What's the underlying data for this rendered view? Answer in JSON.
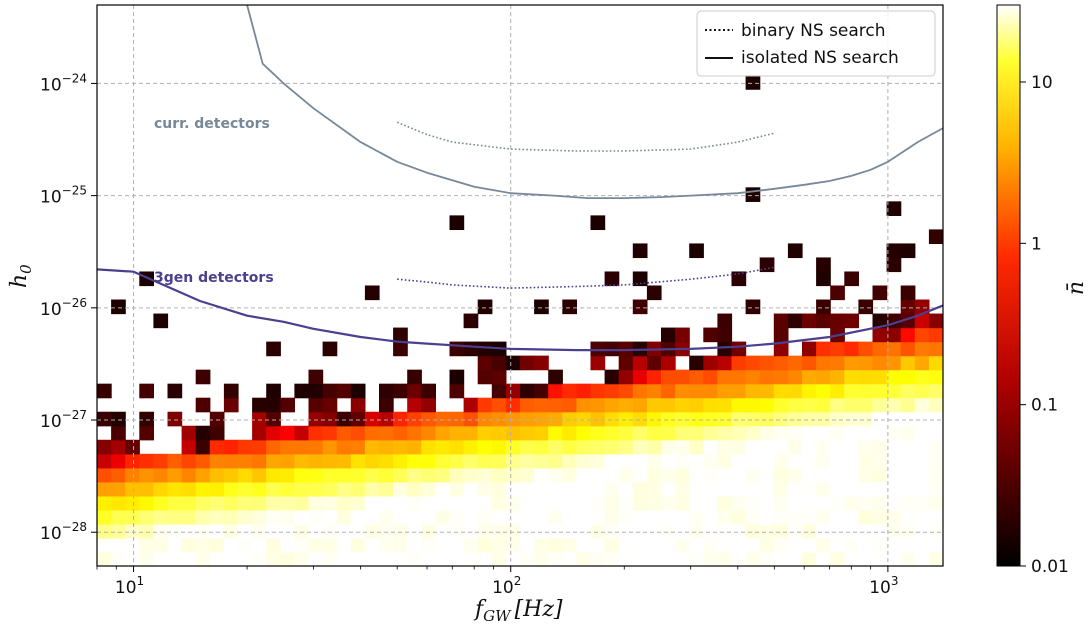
{
  "chart_data": {
    "type": "heatmap",
    "title": "",
    "xlabel_main": "f",
    "xlabel_sub": "GW",
    "xlabel_unit": "[Hz]",
    "ylabel_main": "h",
    "ylabel_sub": "0",
    "colorbar_label": "n̄",
    "x_scale": "log",
    "y_scale": "log",
    "xlim": [
      8,
      1400
    ],
    "ylim": [
      5e-29,
      5e-24
    ],
    "grid": true,
    "x_ticks": [
      {
        "value": 10,
        "base": "10",
        "exp": "1"
      },
      {
        "value": 100,
        "base": "10",
        "exp": "2"
      },
      {
        "value": 1000,
        "base": "10",
        "exp": "3"
      }
    ],
    "y_ticks": [
      {
        "value": 1e-24,
        "base": "10",
        "exp": "−24"
      },
      {
        "value": 1e-25,
        "base": "10",
        "exp": "−25"
      },
      {
        "value": 1e-26,
        "base": "10",
        "exp": "−26"
      },
      {
        "value": 1e-27,
        "base": "10",
        "exp": "−27"
      },
      {
        "value": 1e-28,
        "base": "10",
        "exp": "−28"
      }
    ],
    "colorbar": {
      "scale": "log",
      "range": [
        0.01,
        30
      ],
      "ticks": [
        {
          "value": 10,
          "label": "10"
        },
        {
          "value": 1,
          "label": "1"
        },
        {
          "value": 0.1,
          "label": "0.1"
        },
        {
          "value": 0.01,
          "label": "0.01"
        }
      ]
    },
    "legend": {
      "position": "top-right",
      "entries": [
        {
          "label": "binary NS search",
          "style": "dotted"
        },
        {
          "label": "isolated NS search",
          "style": "solid"
        }
      ]
    },
    "annotations": [
      {
        "text": "curr. detectors",
        "color": "#778899"
      },
      {
        "text": "3gen detectors",
        "color": "#4b3f8f"
      }
    ],
    "series": [
      {
        "group": "curr. detectors",
        "style": "solid",
        "color": "#778899",
        "x": [
          20,
          22,
          25,
          30,
          40,
          50,
          60,
          80,
          100,
          130,
          160,
          200,
          250,
          300,
          400,
          500,
          600,
          700,
          800,
          900,
          1000,
          1200,
          1400
        ],
        "y": [
          5e-24,
          1.5e-24,
          1e-24,
          6e-25,
          3e-25,
          2e-25,
          1.6e-25,
          1.2e-25,
          1.05e-25,
          1e-25,
          9.5e-26,
          9.5e-26,
          9.7e-26,
          1e-25,
          1.05e-25,
          1.15e-25,
          1.25e-25,
          1.35e-25,
          1.5e-25,
          1.7e-25,
          2e-25,
          3e-25,
          4e-25
        ]
      },
      {
        "group": "curr. detectors",
        "style": "dotted",
        "color": "#778899",
        "x": [
          50,
          60,
          70,
          100,
          150,
          200,
          300,
          400,
          500
        ],
        "y": [
          4.5e-25,
          3.5e-25,
          3e-25,
          2.6e-25,
          2.5e-25,
          2.5e-25,
          2.6e-25,
          3e-25,
          3.6e-25
        ]
      },
      {
        "group": "3gen detectors",
        "style": "solid",
        "color": "#4b3f8f",
        "x": [
          8,
          10,
          12,
          15,
          20,
          25,
          30,
          40,
          50,
          60,
          80,
          100,
          150,
          200,
          300,
          400,
          500,
          700,
          1000,
          1200,
          1400
        ],
        "y": [
          2.2e-26,
          2.1e-26,
          1.6e-26,
          1.15e-26,
          8.5e-27,
          7.5e-27,
          6.5e-27,
          5.5e-27,
          5e-27,
          4.8e-27,
          4.5e-27,
          4.3e-27,
          4.2e-27,
          4.2e-27,
          4.3e-27,
          4.5e-27,
          4.8e-27,
          5.5e-27,
          7e-27,
          8.5e-27,
          1.05e-26
        ]
      },
      {
        "group": "3gen detectors",
        "style": "dotted",
        "color": "#4b3f8f",
        "x": [
          50,
          60,
          70,
          100,
          150,
          200,
          300,
          400,
          500
        ],
        "y": [
          1.8e-26,
          1.7e-26,
          1.6e-26,
          1.5e-26,
          1.55e-26,
          1.6e-26,
          1.8e-26,
          2e-26,
          2.3e-26
        ]
      }
    ]
  }
}
